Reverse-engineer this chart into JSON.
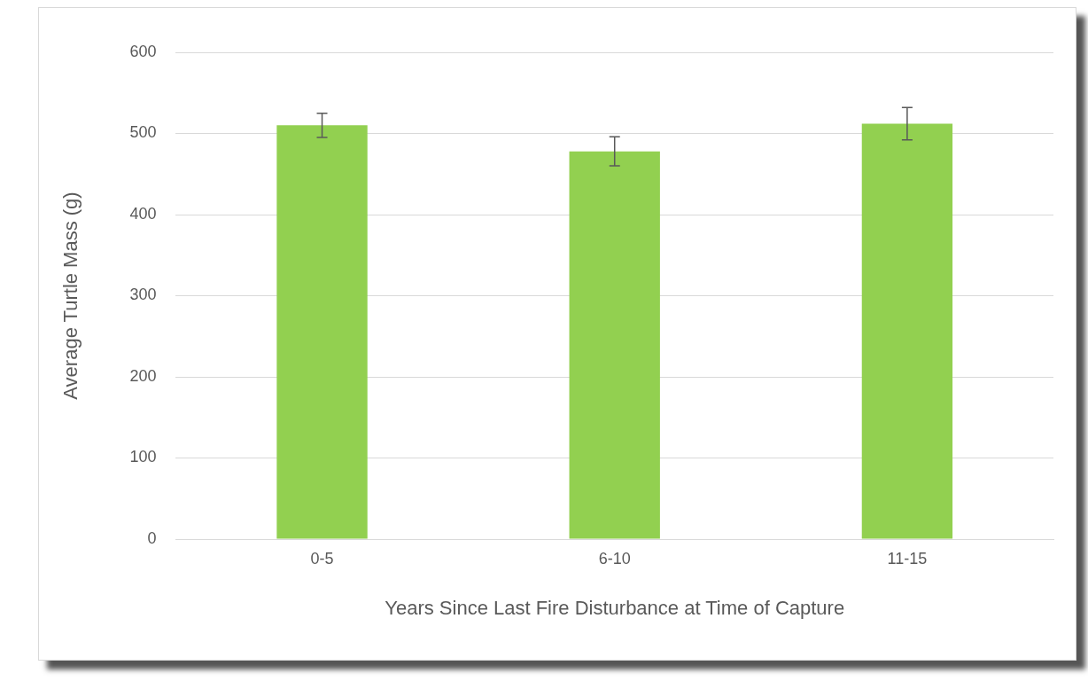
{
  "chart_data": {
    "type": "bar",
    "xlabel": "Years Since Last Fire Disturbance at Time of Capture",
    "ylabel": "Average Turtle Mass (g)",
    "categories": [
      "0-5",
      "6-10",
      "11-15"
    ],
    "series": [
      {
        "color": "#92d050",
        "values": [
          510,
          478,
          512
        ],
        "errors": [
          15,
          18,
          20
        ]
      }
    ],
    "ylim": [
      0,
      600
    ],
    "yticks": [
      0,
      100,
      200,
      300,
      400,
      500,
      600
    ],
    "grid": "y",
    "legend": false
  }
}
